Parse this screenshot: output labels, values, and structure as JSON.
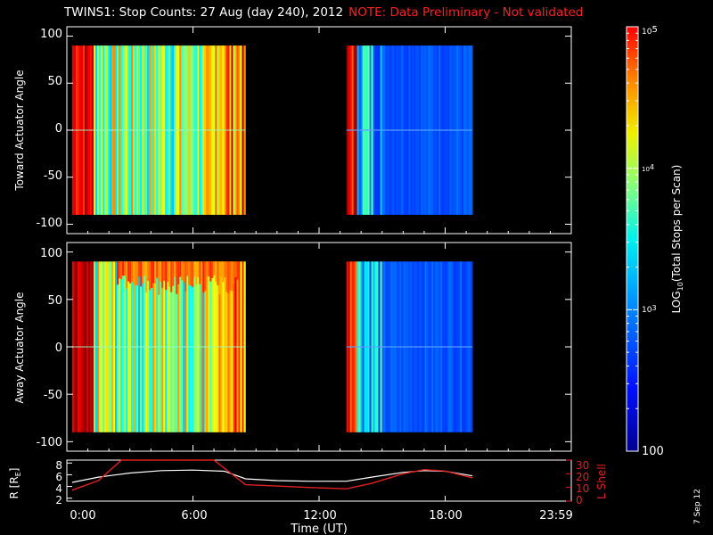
{
  "header": {
    "title": "TWINS1: Stop Counts: 27 Aug (day 240), 2012",
    "note": "NOTE: Data Preliminary - Not validated",
    "date_stamp": "7 Sep 12"
  },
  "colors": {
    "background": "#000000",
    "axes": "#ffffff",
    "note": "#ff2020",
    "r_line": "#ffffff",
    "l_shell": "#e02020"
  },
  "chart_data": [
    {
      "type": "heatmap",
      "ylabel": "Toward Actuator Angle",
      "ylim": [
        -110,
        110
      ],
      "yticks": [
        "100",
        "50",
        "0",
        "-50",
        "-100"
      ],
      "xlim": [
        0,
        24
      ],
      "data_intervals_hours": [
        [
          0.25,
          8.5
        ],
        [
          13.3,
          19.3
        ]
      ],
      "angle_range": [
        -90,
        90
      ],
      "description_values": "log10 total stops per scan, 2 to 5"
    },
    {
      "type": "heatmap",
      "ylabel": "Away Actuator Angle",
      "ylim": [
        -110,
        110
      ],
      "yticks": [
        "100",
        "50",
        "0",
        "-50",
        "-100"
      ],
      "xlim": [
        0,
        24
      ],
      "data_intervals_hours": [
        [
          0.25,
          8.5
        ],
        [
          13.3,
          19.3
        ]
      ],
      "angle_range": [
        -90,
        90
      ]
    },
    {
      "type": "line",
      "ylabel_left": "R [R",
      "ylabel_left_sub": "E",
      "ylabel_right": "L Shell",
      "yticks_left": [
        "8",
        "6",
        "4",
        "2"
      ],
      "yticks_right": [
        "30",
        "20",
        "10",
        "0"
      ],
      "ylim_left": [
        1.5,
        8.5
      ],
      "ylim_right": [
        0,
        30
      ],
      "xlabel": "Time (UT)",
      "xticks": [
        "0:00",
        "6:00",
        "12:00",
        "18:00",
        "23:59"
      ],
      "xtick_hours": [
        0,
        6,
        12,
        18,
        24
      ],
      "series": [
        {
          "name": "R",
          "color": "#ffffff",
          "x": [
            0.25,
            1.5,
            3,
            4.5,
            6,
            7.5,
            8.5,
            10,
            11.5,
            13.3,
            14.5,
            16,
            17,
            18,
            19.3
          ],
          "y": [
            4.7,
            5.6,
            6.3,
            6.7,
            6.8,
            6.6,
            5.3,
            5.0,
            4.9,
            4.9,
            5.6,
            6.4,
            6.7,
            6.6,
            5.8
          ]
        },
        {
          "name": "L Shell",
          "color": "#e02020",
          "x": [
            0.25,
            1.5,
            2.6,
            7,
            8.5,
            10,
            11.5,
            13.3,
            14.5,
            16,
            17,
            18,
            19.3
          ],
          "y": [
            8,
            15,
            31,
            31,
            12,
            11,
            10,
            9,
            13,
            20,
            23,
            22,
            17
          ]
        }
      ]
    },
    {
      "type": "colorbar",
      "label_prefix": "LOG",
      "label_sub": "10",
      "label_suffix": "(Total Stops per Scan)",
      "ticks": [
        "10",
        "10",
        "10",
        "100"
      ],
      "tick_exponents": [
        "5",
        "4",
        "3",
        ""
      ],
      "range_log": [
        2,
        5
      ]
    }
  ]
}
